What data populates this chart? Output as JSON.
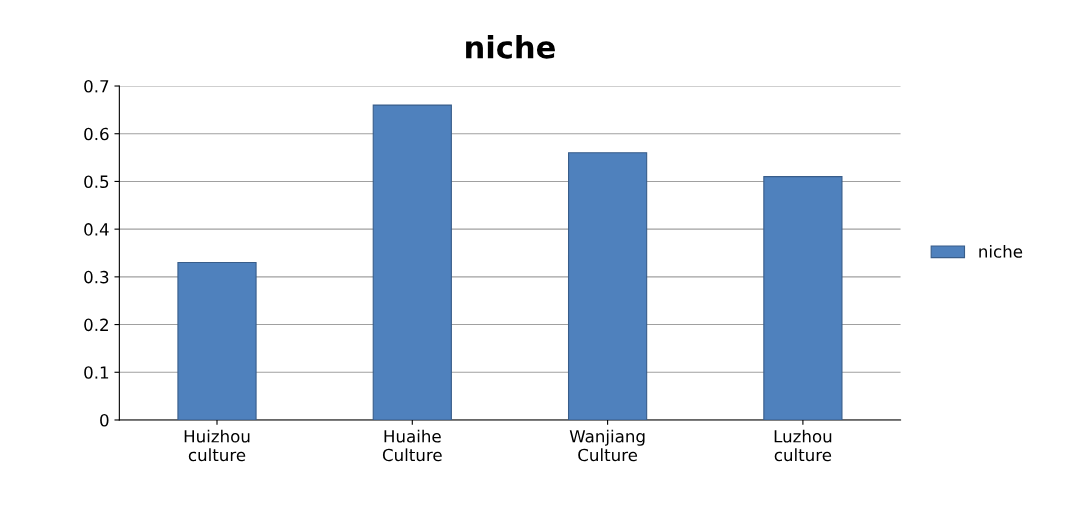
{
  "chart_data": {
    "type": "bar",
    "title": "niche",
    "categories": [
      "Huizhou\nculture",
      "Huaihe\nCulture",
      "Wanjiang\nCulture",
      "Luzhou\nculture"
    ],
    "series": [
      {
        "name": "niche",
        "color": "#4f81bd",
        "values": [
          0.33,
          0.66,
          0.56,
          0.51
        ]
      }
    ],
    "ylim": [
      0,
      0.7
    ],
    "yticks": [
      0,
      0.1,
      0.2,
      0.3,
      0.4,
      0.5,
      0.6,
      0.7
    ],
    "grid": "y",
    "legend": "right"
  }
}
